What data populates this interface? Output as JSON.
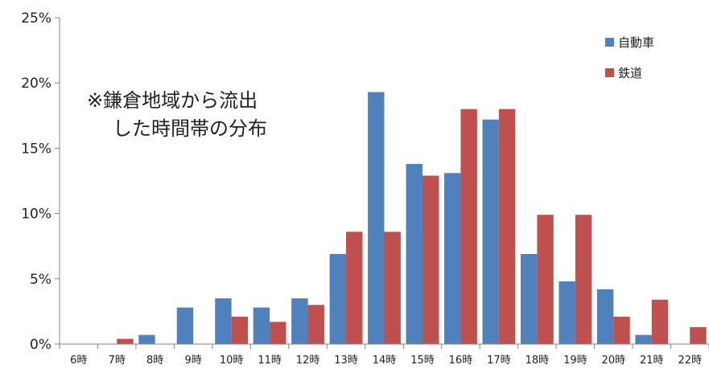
{
  "chart_data": {
    "type": "bar",
    "title": "",
    "xlabel": "",
    "ylabel": "",
    "ylim": [
      0,
      25
    ],
    "y_ticks": [
      "0%",
      "5%",
      "10%",
      "15%",
      "20%",
      "25%"
    ],
    "categories": [
      "6時",
      "7時",
      "8時",
      "9時",
      "10時",
      "11時",
      "12時",
      "13時",
      "14時",
      "15時",
      "16時",
      "17時",
      "18時",
      "19時",
      "20時",
      "21時",
      "22時"
    ],
    "series": [
      {
        "name": "自動車",
        "color": "#4f81bd",
        "values": [
          0,
          0,
          0.7,
          2.8,
          3.5,
          2.8,
          3.5,
          6.9,
          19.3,
          13.8,
          13.1,
          17.2,
          6.9,
          4.8,
          4.2,
          0.7,
          0
        ]
      },
      {
        "name": "鉄道",
        "color": "#c0504d",
        "values": [
          0,
          0.4,
          0,
          0,
          2.1,
          1.7,
          3.0,
          8.6,
          8.6,
          12.9,
          18.0,
          18.0,
          9.9,
          9.9,
          2.1,
          3.4,
          1.3
        ]
      }
    ],
    "legend_position": "top-right",
    "grid": false,
    "annotation": [
      "※鎌倉地域から流出",
      "した時間帯の分布"
    ]
  }
}
